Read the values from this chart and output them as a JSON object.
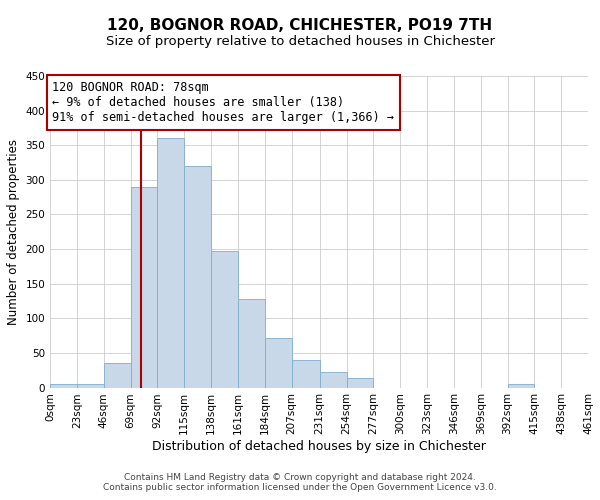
{
  "title": "120, BOGNOR ROAD, CHICHESTER, PO19 7TH",
  "subtitle": "Size of property relative to detached houses in Chichester",
  "xlabel": "Distribution of detached houses by size in Chichester",
  "ylabel": "Number of detached properties",
  "bin_edges": [
    0,
    23,
    46,
    69,
    92,
    115,
    138,
    161,
    184,
    207,
    231,
    254,
    277,
    300,
    323,
    346,
    369,
    392,
    415,
    438,
    461
  ],
  "bin_labels": [
    "0sqm",
    "23sqm",
    "46sqm",
    "69sqm",
    "92sqm",
    "115sqm",
    "138sqm",
    "161sqm",
    "184sqm",
    "207sqm",
    "231sqm",
    "254sqm",
    "277sqm",
    "300sqm",
    "323sqm",
    "346sqm",
    "369sqm",
    "392sqm",
    "415sqm",
    "438sqm",
    "461sqm"
  ],
  "counts": [
    5,
    5,
    36,
    290,
    360,
    320,
    197,
    128,
    71,
    40,
    22,
    14,
    0,
    0,
    0,
    0,
    0,
    5,
    0,
    0
  ],
  "bar_color": "#c8d8e8",
  "bar_edgecolor": "#7faece",
  "vline_x": 78,
  "vline_color": "#aa0000",
  "annotation_line1": "120 BOGNOR ROAD: 78sqm",
  "annotation_line2": "← 9% of detached houses are smaller (138)",
  "annotation_line3": "91% of semi-detached houses are larger (1,366) →",
  "annotation_box_edgecolor": "#aa0000",
  "annotation_box_facecolor": "#ffffff",
  "ylim": [
    0,
    450
  ],
  "yticks": [
    0,
    50,
    100,
    150,
    200,
    250,
    300,
    350,
    400,
    450
  ],
  "grid_color": "#cccccc",
  "bg_color": "#ffffff",
  "footnote": "Contains HM Land Registry data © Crown copyright and database right 2024.\nContains public sector information licensed under the Open Government Licence v3.0.",
  "title_fontsize": 11,
  "subtitle_fontsize": 9.5,
  "xlabel_fontsize": 9,
  "ylabel_fontsize": 8.5,
  "tick_fontsize": 7.5,
  "annotation_fontsize": 8.5,
  "footnote_fontsize": 6.5
}
